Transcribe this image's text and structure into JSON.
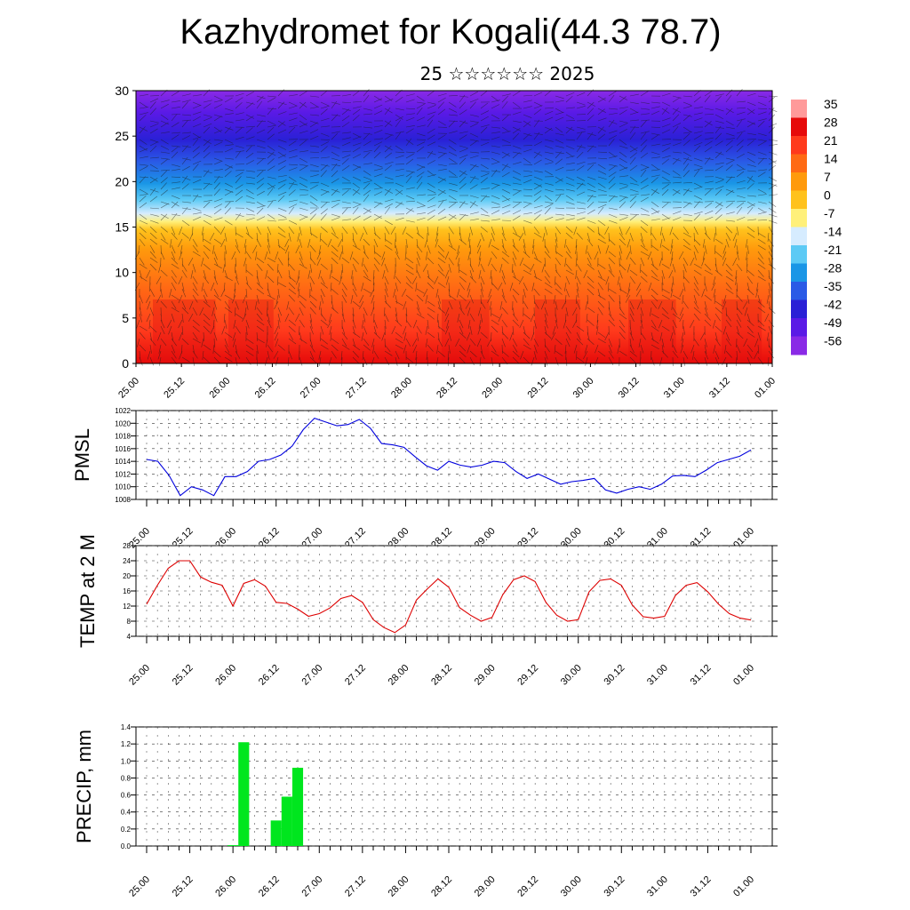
{
  "title": "Kazhydromet for Kogali(44.3 78.7)",
  "subtitle": "25 ☆☆☆☆☆☆ 2025",
  "time_labels": [
    "25.00",
    "25.12",
    "26.00",
    "26.12",
    "27.00",
    "27.12",
    "28.00",
    "28.12",
    "29.00",
    "29.12",
    "30.00",
    "30.12",
    "31.00",
    "31.12",
    "01.00"
  ],
  "chart_data": [
    {
      "type": "heatmap",
      "xlabel": "",
      "ylabel": "",
      "ylim": [
        0,
        30
      ],
      "y_ticks": [
        0,
        5,
        10,
        15,
        20,
        25,
        30
      ],
      "colorbar": {
        "labels": [
          "35",
          "28",
          "21",
          "14",
          "7",
          "0",
          "-7",
          "-14",
          "-21",
          "-28",
          "-35",
          "-42",
          "-49",
          "-56"
        ],
        "colors": [
          "#ff9a9a",
          "#e60a0a",
          "#ff3a1c",
          "#ff6a14",
          "#ff9a0c",
          "#ffc21c",
          "#fff07a",
          "#d6ecff",
          "#5ccaf5",
          "#1a96e6",
          "#2a5ae6",
          "#2a20d6",
          "#5a1ae6",
          "#8a2ae6"
        ]
      },
      "annotations": "wind barbs overlaid"
    },
    {
      "type": "line",
      "ylabel": "PMSL",
      "ylim": [
        1008,
        1022
      ],
      "y_ticks": [
        1008,
        1010,
        1012,
        1014,
        1016,
        1018,
        1020,
        1022
      ],
      "series": [
        {
          "color": "#0000dd",
          "values": [
            1014.3,
            1014,
            1011.8,
            1008.6,
            1010,
            1009.5,
            1008.6,
            1011.6,
            1011.6,
            1012.4,
            1014,
            1014.3,
            1015,
            1016.4,
            1019,
            1020.8,
            1020.2,
            1019.6,
            1019.8,
            1020.6,
            1019.2,
            1016.8,
            1016.6,
            1016.2,
            1014.7,
            1013.3,
            1012.6,
            1014,
            1013.4,
            1013.1,
            1013.4,
            1014,
            1013.8,
            1012.4,
            1011.3,
            1012,
            1011.2,
            1010.4,
            1010.8,
            1011,
            1011.3,
            1009.5,
            1009,
            1009.6,
            1010,
            1009.6,
            1010.4,
            1011.7,
            1011.8,
            1011.6,
            1012.6,
            1013.8,
            1014.3,
            1014.8,
            1015.8
          ]
        }
      ]
    },
    {
      "type": "line",
      "ylabel": "TEMP at 2 M",
      "ylim": [
        4,
        28
      ],
      "y_ticks": [
        4,
        8,
        12,
        16,
        20,
        24,
        28
      ],
      "series": [
        {
          "color": "#dd0000",
          "values": [
            12.5,
            17.5,
            22,
            24,
            24,
            19.7,
            18.3,
            17.5,
            12,
            18,
            19,
            17.3,
            13,
            12.7,
            11.2,
            9.3,
            10,
            11.5,
            14,
            14.8,
            13,
            8.4,
            6.3,
            5,
            7,
            13.6,
            16.5,
            19.2,
            17,
            11.6,
            9.6,
            8,
            9,
            15,
            19,
            20,
            18.5,
            13,
            9.6,
            8,
            8.4,
            15.8,
            18.8,
            19.2,
            17.5,
            12.3,
            9.2,
            8.8,
            9.3,
            14.8,
            17.5,
            18.2,
            15.8,
            12.5,
            10,
            8.8,
            8.3
          ]
        }
      ]
    },
    {
      "type": "bar",
      "ylabel": "PRECIP, mm",
      "ylim": [
        0,
        1.4
      ],
      "y_ticks": [
        "0.0",
        "0.2",
        "0.4",
        "0.6",
        "0.8",
        "1.0",
        "1.2",
        "1.4"
      ],
      "series": [
        {
          "color": "#00e61e",
          "values": [
            0,
            0,
            0,
            0,
            0,
            0,
            0,
            0,
            0.01,
            1.22,
            0,
            0,
            0.3,
            0.58,
            0.92,
            0,
            0,
            0,
            0,
            0,
            0,
            0,
            0,
            0,
            0,
            0,
            0,
            0,
            0,
            0,
            0,
            0,
            0,
            0,
            0,
            0,
            0,
            0,
            0,
            0,
            0,
            0,
            0,
            0,
            0,
            0,
            0,
            0,
            0,
            0,
            0,
            0,
            0,
            0,
            0,
            0,
            0
          ]
        }
      ]
    }
  ]
}
